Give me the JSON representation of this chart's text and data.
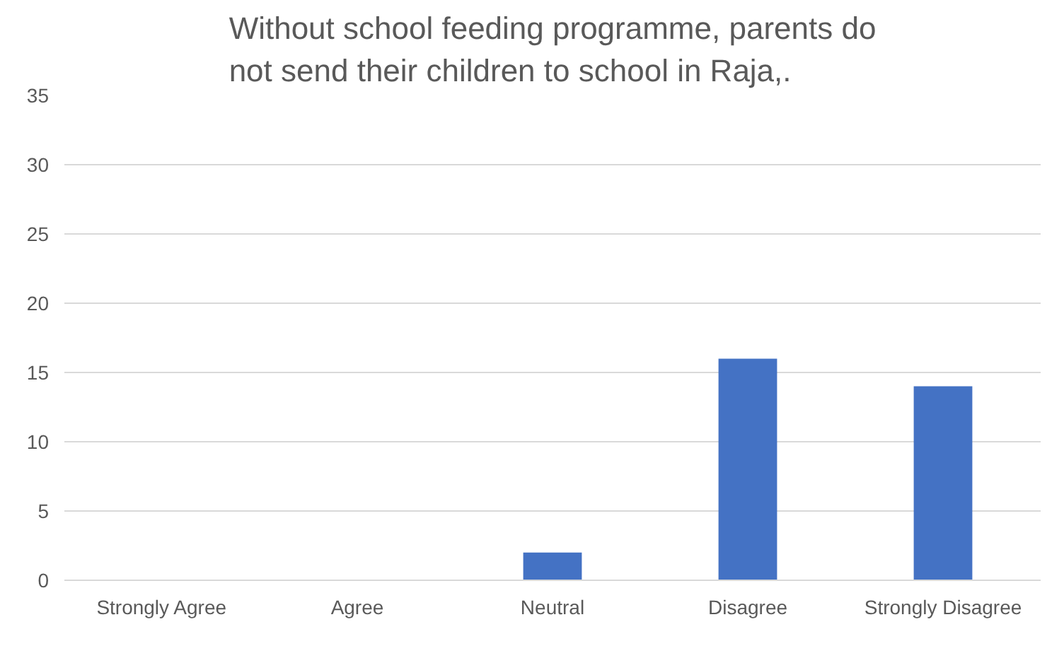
{
  "chart_data": {
    "type": "bar",
    "title": "Without school feeding programme, parents do not send their children to school in Raja,.",
    "categories": [
      "Strongly Agree",
      "Agree",
      "Neutral",
      "Disagree",
      "Strongly Disagree"
    ],
    "values": [
      0,
      0,
      2,
      16,
      14
    ],
    "color": "#4472c4",
    "ylim": [
      0,
      35
    ],
    "yticks": [
      0,
      5,
      10,
      15,
      20,
      25,
      30,
      35
    ],
    "grid": "y"
  }
}
